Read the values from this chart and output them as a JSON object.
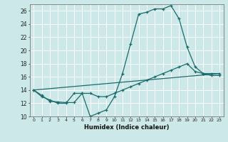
{
  "xlabel": "Humidex (Indice chaleur)",
  "background_color": "#cce8e8",
  "grid_color": "#ffffff",
  "line_color": "#1a6b6b",
  "xlim": [
    -0.5,
    23.5
  ],
  "ylim": [
    10,
    27
  ],
  "xticks": [
    0,
    1,
    2,
    3,
    4,
    5,
    6,
    7,
    8,
    9,
    10,
    11,
    12,
    13,
    14,
    15,
    16,
    17,
    18,
    19,
    20,
    21,
    22,
    23
  ],
  "yticks": [
    10,
    12,
    14,
    16,
    18,
    20,
    22,
    24,
    26
  ],
  "line1_x": [
    0,
    1,
    2,
    3,
    4,
    5,
    6,
    7,
    8,
    9,
    10,
    11,
    12,
    13,
    14,
    15,
    16,
    17,
    18,
    19,
    20,
    21,
    22,
    23
  ],
  "line1_y": [
    14,
    13,
    12.5,
    12,
    12,
    13.5,
    13.5,
    10,
    10.5,
    11,
    13,
    16.5,
    21,
    25.5,
    25.8,
    26.3,
    26.3,
    26.8,
    24.8,
    20.5,
    17.5,
    16.5,
    16.2,
    16.2
  ],
  "line2_x": [
    0,
    1,
    2,
    3,
    4,
    5,
    6,
    7,
    8,
    9,
    10,
    11,
    12,
    13,
    14,
    15,
    16,
    17,
    18,
    19,
    20,
    21,
    22,
    23
  ],
  "line2_y": [
    14,
    13.2,
    12.3,
    12.2,
    12.1,
    12.1,
    13.5,
    13.5,
    13.0,
    13.0,
    13.5,
    14.0,
    14.5,
    15.0,
    15.5,
    16.0,
    16.5,
    17.0,
    17.5,
    18.0,
    16.8,
    16.5,
    16.5,
    16.5
  ],
  "line3_x": [
    0,
    23
  ],
  "line3_y": [
    14,
    16.5
  ]
}
